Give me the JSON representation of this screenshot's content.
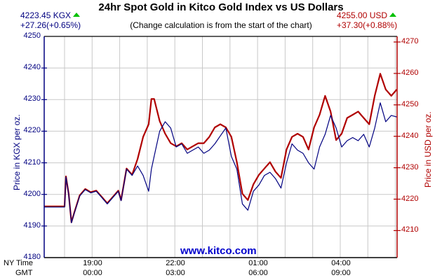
{
  "header": {
    "title": "24hr Spot Gold in Kitco Gold Index vs US Dollars",
    "subtitle": "(Change calculation is from the start of the chart)",
    "kgx_price": "4223.45 KGX",
    "kgx_change": "+27.26(+0.65%)",
    "usd_price": "4255.00 USD",
    "usd_change": "+37.30(+0.88%)",
    "trend_icon": "up-triangle-icon"
  },
  "axes": {
    "left_label": "Price in KGX per oz.",
    "right_label": "Price in USD per oz.",
    "left_ticks": [
      "4250",
      "4240",
      "4230",
      "4220",
      "4210",
      "4200",
      "4190",
      "4180"
    ],
    "right_ticks": [
      "4270",
      "4260",
      "4250",
      "4240",
      "4230",
      "4220",
      "4210"
    ],
    "x_row1_label": "NY Time",
    "x_row2_label": "GMT",
    "x_ticks_ny": [
      "19:00",
      "22:00",
      "01:00",
      "04:00"
    ],
    "x_ticks_gmt": [
      "00:00",
      "03:00",
      "06:00",
      "09:00"
    ]
  },
  "watermark": "www.kitco.com",
  "colors": {
    "kgx": "#000080",
    "usd": "#b00000",
    "up": "#00c000",
    "grid": "#c8c8c8"
  },
  "chart_data": {
    "type": "line",
    "title": "24hr Spot Gold in Kitco Gold Index vs US Dollars",
    "subtitle": "(Change calculation is from the start of the chart)",
    "xlabel": "NY Time / GMT",
    "x_unit": "hours from chart start (NY 17:15 approx)",
    "ylabel_left": "Price in KGX per oz.",
    "ylabel_right": "Price in USD per oz.",
    "ylim_left": [
      4180,
      4250
    ],
    "ylim_right": [
      4201.8,
      4271.8
    ],
    "grid": true,
    "legend": "none",
    "x": [
      0,
      0.75,
      0.8,
      0.9,
      1.0,
      1.1,
      1.3,
      1.5,
      1.7,
      1.9,
      2.1,
      2.3,
      2.5,
      2.7,
      2.8,
      3.0,
      3.2,
      3.4,
      3.6,
      3.8,
      3.9,
      4.0,
      4.2,
      4.4,
      4.6,
      4.8,
      5.0,
      5.2,
      5.4,
      5.6,
      5.8,
      6.0,
      6.2,
      6.4,
      6.6,
      6.8,
      7.0,
      7.2,
      7.4,
      7.6,
      7.8,
      8.0,
      8.2,
      8.4,
      8.6,
      8.8,
      9.0,
      9.2,
      9.4,
      9.6,
      9.8,
      10.0,
      10.2,
      10.4,
      10.6,
      10.8,
      11.0,
      11.2,
      11.4,
      11.6,
      11.8,
      12.0,
      12.2,
      12.4,
      12.6,
      12.8
    ],
    "series": [
      {
        "name": "KGX",
        "axis": "left",
        "color": "#000080",
        "values": [
          4196,
          4196,
          4205.5,
          4200,
          4191,
          4194,
          4199.5,
          4201.5,
          4200.5,
          4201,
          4199,
          4197,
          4199,
          4201,
          4198,
          4208,
          4206,
          4209,
          4206,
          4201,
          4208,
          4212,
          4220,
          4223,
          4221,
          4215,
          4216,
          4213,
          4214,
          4215,
          4213,
          4214,
          4216,
          4218.5,
          4221,
          4212,
          4208,
          4197,
          4195,
          4201,
          4203,
          4206,
          4207,
          4205,
          4202,
          4210,
          4216,
          4214,
          4213,
          4210,
          4208,
          4215,
          4219,
          4225,
          4221,
          4215,
          4217,
          4218,
          4217,
          4219,
          4215,
          4221,
          4229,
          4223,
          4225,
          4224.5
        ],
        "end_value": 4223.45,
        "change": "+27.26(+0.65%)"
      },
      {
        "name": "USD",
        "axis": "right",
        "color": "#b00000",
        "values": [
          4218,
          4218,
          4227.5,
          4222,
          4213,
          4216,
          4221.5,
          4223.5,
          4222.5,
          4223,
          4221,
          4219,
          4221,
          4223,
          4220,
          4230,
          4228,
          4233,
          4240,
          4244,
          4252,
          4252,
          4245,
          4241,
          4238,
          4237,
          4238,
          4236,
          4237,
          4238,
          4238,
          4240,
          4243,
          4244,
          4243,
          4240,
          4232,
          4222,
          4220,
          4225,
          4228,
          4230,
          4232,
          4229,
          4227,
          4236,
          4240,
          4241,
          4240,
          4236,
          4243,
          4247,
          4253,
          4248,
          4239,
          4241,
          4246,
          4247,
          4248,
          4246,
          4244,
          4253,
          4260,
          4255,
          4253,
          4255
        ]
      }
    ]
  }
}
